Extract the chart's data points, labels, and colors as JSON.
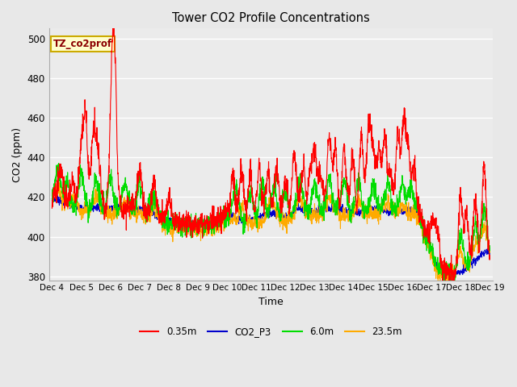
{
  "title": "Tower CO2 Profile Concentrations",
  "xlabel": "Time",
  "ylabel": "CO2 (ppm)",
  "ylim": [
    378,
    505
  ],
  "yticks": [
    380,
    400,
    420,
    440,
    460,
    480,
    500
  ],
  "bg_color": "#e8e8e8",
  "plot_bg_color": "#ebebeb",
  "colors": {
    "0.35m": "#ff0000",
    "CO2_P3": "#0000cc",
    "6.0m": "#00dd00",
    "23.5m": "#ffaa00"
  },
  "annotation_text": "TZ_co2prof",
  "annotation_fg": "#8b0000",
  "annotation_bg": "#ffffcc",
  "annotation_edge": "#ccaa00",
  "legend_labels": [
    "0.35m",
    "CO2_P3",
    "6.0m",
    "23.5m"
  ],
  "x_tick_labels": [
    "Dec 4",
    "Dec 5",
    "Dec 6",
    "Dec 7",
    "Dec 8",
    "Dec 9",
    "Dec 10",
    "Dec 11",
    "Dec 12",
    "Dec 13",
    "Dec 14",
    "Dec 15",
    "Dec 16",
    "Dec 17",
    "Dec 18",
    "Dec 19"
  ],
  "n_points": 2000
}
